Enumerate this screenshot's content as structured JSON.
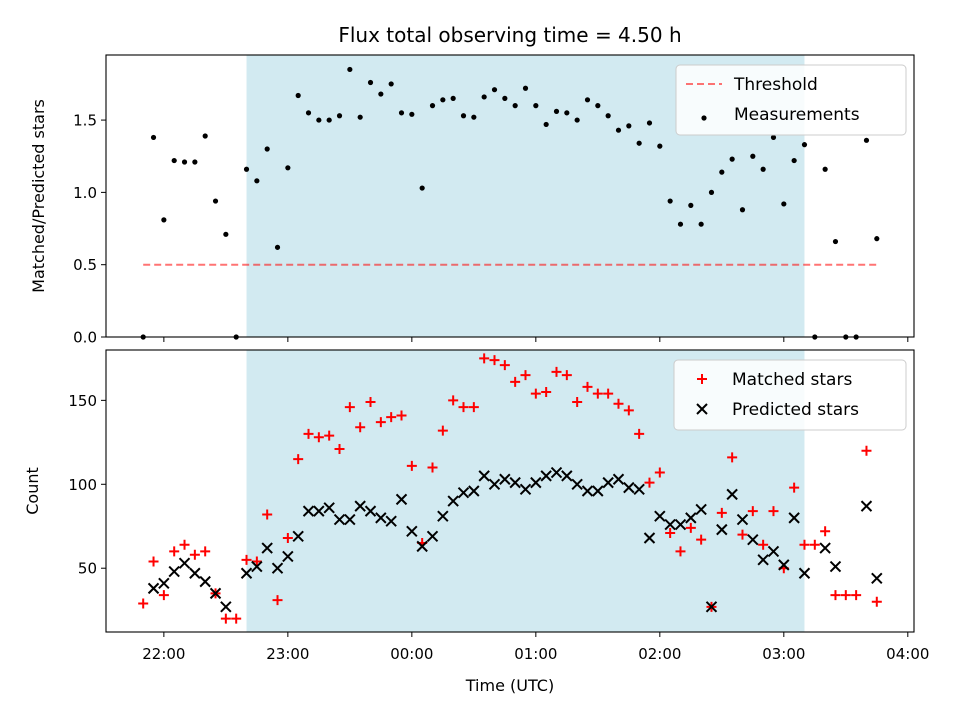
{
  "figure": {
    "title": "Flux total observing time = 4.50 h",
    "xlabel": "Time (UTC)"
  },
  "colors": {
    "shade": "#add8e6",
    "threshold": "#ff0000",
    "measurements": "#000000",
    "matched": "#ff0000",
    "predicted": "#000000"
  },
  "chart_data": [
    {
      "type": "scatter",
      "ylabel": "Matched/Predicted stars",
      "ylim": [
        0,
        1.95
      ],
      "yticks": [
        0.0,
        0.5,
        1.0,
        1.5
      ],
      "xlim": [
        "21:32",
        "04:03"
      ],
      "xticks": [
        "22:00",
        "23:00",
        "00:00",
        "01:00",
        "02:00",
        "03:00",
        "04:00"
      ],
      "shaded_region": [
        "22:40",
        "03:10"
      ],
      "legend_position": "upper right",
      "threshold": {
        "name": "Threshold",
        "value": 0.5,
        "x": [
          "21:50",
          "03:45"
        ],
        "style": "dashed"
      },
      "series": [
        {
          "name": "Measurements",
          "marker": "dot",
          "x": [
            "21:50",
            "21:55",
            "22:00",
            "22:05",
            "22:10",
            "22:15",
            "22:20",
            "22:25",
            "22:30",
            "22:35",
            "22:40",
            "22:45",
            "22:50",
            "22:55",
            "23:00",
            "23:05",
            "23:10",
            "23:15",
            "23:20",
            "23:25",
            "23:30",
            "23:35",
            "23:40",
            "23:45",
            "23:50",
            "23:55",
            "00:00",
            "00:05",
            "00:10",
            "00:15",
            "00:20",
            "00:25",
            "00:30",
            "00:35",
            "00:40",
            "00:45",
            "00:50",
            "00:55",
            "01:00",
            "01:05",
            "01:10",
            "01:15",
            "01:20",
            "01:25",
            "01:30",
            "01:35",
            "01:40",
            "01:45",
            "01:50",
            "01:55",
            "02:00",
            "02:05",
            "02:10",
            "02:15",
            "02:20",
            "02:25",
            "02:30",
            "02:35",
            "02:40",
            "02:45",
            "02:50",
            "02:55",
            "03:00",
            "03:05",
            "03:10",
            "03:15",
            "03:20",
            "03:25",
            "03:30",
            "03:35",
            "03:40",
            "03:45"
          ],
          "y": [
            0.0,
            1.38,
            0.81,
            1.22,
            1.21,
            1.21,
            1.39,
            0.94,
            0.71,
            0.0,
            1.16,
            1.08,
            1.3,
            0.62,
            1.17,
            1.67,
            1.55,
            1.5,
            1.5,
            1.53,
            1.85,
            1.52,
            1.76,
            1.68,
            1.75,
            1.55,
            1.54,
            1.03,
            1.6,
            1.64,
            1.65,
            1.53,
            1.52,
            1.66,
            1.71,
            1.65,
            1.6,
            1.72,
            1.6,
            1.47,
            1.56,
            1.55,
            1.5,
            1.64,
            1.6,
            1.53,
            1.43,
            1.46,
            1.34,
            1.48,
            1.32,
            0.94,
            0.78,
            0.91,
            0.78,
            1.0,
            1.14,
            1.23,
            0.88,
            1.25,
            1.16,
            1.38,
            0.92,
            1.22,
            1.33,
            0.0,
            1.16,
            0.66,
            0.0,
            0.0,
            1.36,
            0.68
          ]
        }
      ]
    },
    {
      "type": "scatter",
      "ylabel": "Count",
      "ylim": [
        12,
        180
      ],
      "yticks": [
        50,
        100,
        150
      ],
      "xlim": [
        "21:32",
        "04:03"
      ],
      "xticks": [
        "22:00",
        "23:00",
        "00:00",
        "01:00",
        "02:00",
        "03:00",
        "04:00"
      ],
      "shaded_region": [
        "22:40",
        "03:10"
      ],
      "legend_position": "upper right",
      "series": [
        {
          "name": "Matched stars",
          "marker": "plus",
          "x": [
            "21:50",
            "21:55",
            "22:00",
            "22:05",
            "22:10",
            "22:15",
            "22:20",
            "22:25",
            "22:30",
            "22:35",
            "22:40",
            "22:45",
            "22:50",
            "22:55",
            "23:00",
            "23:05",
            "23:10",
            "23:15",
            "23:20",
            "23:25",
            "23:30",
            "23:35",
            "23:40",
            "23:45",
            "23:50",
            "23:55",
            "00:00",
            "00:05",
            "00:10",
            "00:15",
            "00:20",
            "00:25",
            "00:30",
            "00:35",
            "00:40",
            "00:45",
            "00:50",
            "00:55",
            "01:00",
            "01:05",
            "01:10",
            "01:15",
            "01:20",
            "01:25",
            "01:30",
            "01:35",
            "01:40",
            "01:45",
            "01:50",
            "01:55",
            "02:00",
            "02:05",
            "02:10",
            "02:15",
            "02:20",
            "02:25",
            "02:30",
            "02:35",
            "02:40",
            "02:45",
            "02:50",
            "02:55",
            "03:00",
            "03:05",
            "03:10",
            "03:15",
            "03:20",
            "03:25",
            "03:30",
            "03:35",
            "03:40",
            "03:45"
          ],
          "y": [
            29,
            54,
            34,
            60,
            64,
            58,
            60,
            35,
            20,
            20,
            55,
            54,
            82,
            31,
            68,
            115,
            130,
            128,
            129,
            121,
            146,
            134,
            149,
            137,
            140,
            141,
            111,
            65,
            110,
            132,
            150,
            146,
            146,
            175,
            174,
            171,
            161,
            165,
            154,
            155,
            167,
            165,
            149,
            158,
            154,
            154,
            148,
            144,
            130,
            101,
            107,
            71,
            60,
            74,
            67,
            27,
            83,
            116,
            70,
            84,
            64,
            84,
            50,
            98,
            64,
            64,
            72,
            34,
            34,
            34,
            120,
            30
          ]
        },
        {
          "name": "Predicted stars",
          "marker": "x",
          "x": [
            "21:55",
            "22:00",
            "22:05",
            "22:10",
            "22:15",
            "22:20",
            "22:25",
            "22:30",
            "22:40",
            "22:45",
            "22:50",
            "22:55",
            "23:00",
            "23:05",
            "23:10",
            "23:15",
            "23:20",
            "23:25",
            "23:30",
            "23:35",
            "23:40",
            "23:45",
            "23:50",
            "23:55",
            "00:00",
            "00:05",
            "00:10",
            "00:15",
            "00:20",
            "00:25",
            "00:30",
            "00:35",
            "00:40",
            "00:45",
            "00:50",
            "00:55",
            "01:00",
            "01:05",
            "01:10",
            "01:15",
            "01:20",
            "01:25",
            "01:30",
            "01:35",
            "01:40",
            "01:45",
            "01:50",
            "01:55",
            "02:00",
            "02:05",
            "02:10",
            "02:15",
            "02:20",
            "02:25",
            "02:30",
            "02:35",
            "02:40",
            "02:45",
            "02:50",
            "02:55",
            "03:00",
            "03:05",
            "03:10",
            "03:20",
            "03:25",
            "03:40",
            "03:45"
          ],
          "y": [
            38,
            41,
            48,
            53,
            47,
            42,
            35,
            27,
            47,
            51,
            62,
            50,
            57,
            69,
            84,
            84,
            86,
            79,
            79,
            87,
            84,
            80,
            78,
            91,
            72,
            63,
            69,
            81,
            90,
            95,
            96,
            105,
            100,
            103,
            101,
            97,
            101,
            105,
            107,
            105,
            100,
            96,
            96,
            101,
            103,
            98,
            97,
            68,
            81,
            76,
            76,
            80,
            85,
            27,
            73,
            94,
            79,
            67,
            55,
            60,
            52,
            80,
            47,
            62,
            51,
            87,
            44
          ]
        }
      ]
    }
  ]
}
